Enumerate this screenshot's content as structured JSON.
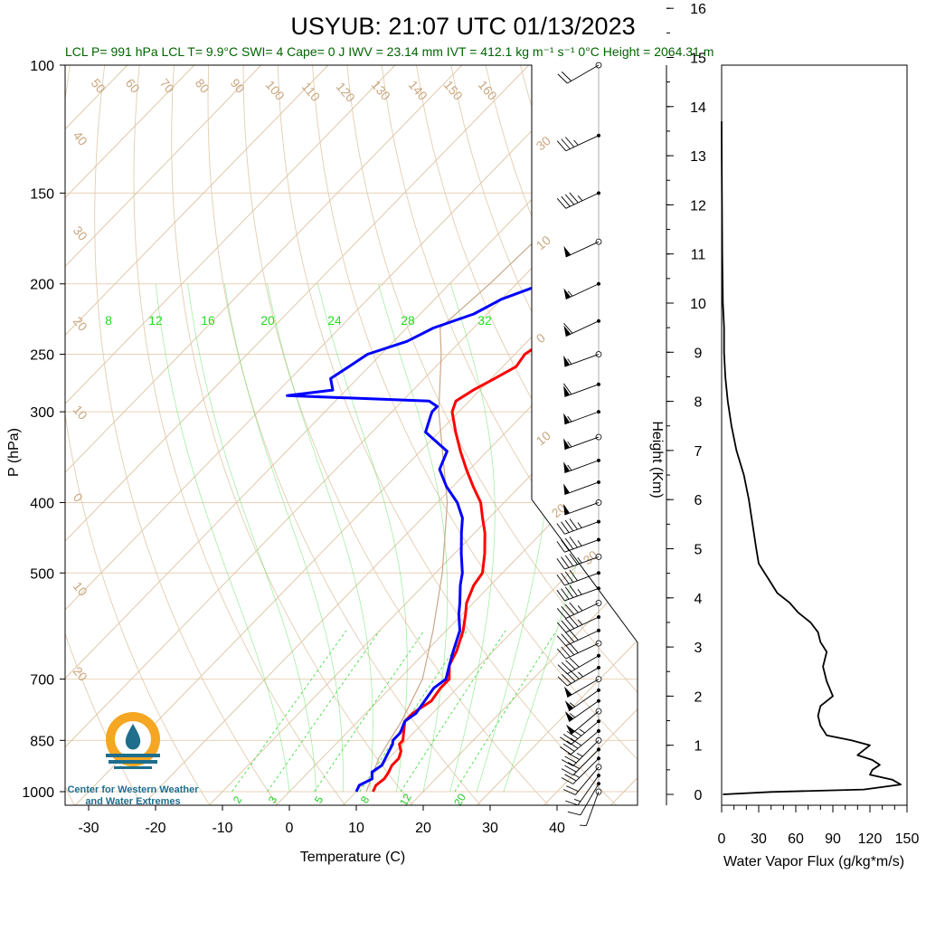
{
  "header": {
    "title": "USYUB: 21:07 UTC 01/13/2023",
    "indices": "LCL P= 991 hPa  LCL T= 9.9°C  SWI= 4  Cape= 0 J  IWV = 23.14 mm  IVT = 412.1 kg m⁻¹ s⁻¹  0°C Height = 2064.31 m"
  },
  "logo": {
    "line1": "Center for Western Weather",
    "line2": "and Water Extremes",
    "colors": {
      "sun": "#f5a623",
      "water": "#1f6e8c"
    }
  },
  "colors": {
    "temperature": "#ff0000",
    "dewpoint": "#0000ff",
    "isotherm": "#e0c8a8",
    "isobar": "#e8d2b8",
    "mixing_ratio": "#44dd44",
    "parcel": "#c8a88a",
    "wind": "#000000"
  },
  "chart_data": [
    {
      "type": "line",
      "name": "skew-t",
      "xlabel": "Temperature (C)",
      "ylabel": "P (hPa)",
      "xlim": [
        -34,
        53
      ],
      "ylim": [
        1000,
        100
      ],
      "log_y": true,
      "x_ticks": [
        -30,
        -20,
        -10,
        0,
        10,
        20,
        30,
        40
      ],
      "y_ticks": [
        100,
        150,
        200,
        250,
        300,
        400,
        500,
        700,
        850,
        1000
      ],
      "isotherm_labels": [
        "50",
        "60",
        "70",
        "80",
        "90",
        "100",
        "110",
        "120",
        "130",
        "140",
        "150",
        "160",
        "40",
        "30",
        "20",
        "10",
        "0",
        "10",
        "20",
        "30",
        "10",
        "0",
        "10",
        "20",
        "30"
      ],
      "mixing_ratio_labels_upper": [
        "8",
        "12",
        "16",
        "20",
        "24",
        "28",
        "32"
      ],
      "mixing_ratio_labels_lower": [
        "2",
        "3",
        "5",
        "8",
        "12",
        "20"
      ],
      "series": [
        {
          "name": "temperature",
          "p": [
            1000,
            980,
            960,
            940,
            920,
            900,
            880,
            860,
            850,
            830,
            800,
            780,
            750,
            720,
            700,
            670,
            640,
            600,
            570,
            550,
            520,
            500,
            470,
            440,
            420,
            400,
            380,
            360,
            340,
            320,
            300,
            290,
            280,
            270,
            260,
            250,
            240,
            230,
            220,
            210,
            200,
            190,
            180,
            170,
            160,
            150
          ],
          "t": [
            12.5,
            12.0,
            12.3,
            12.0,
            11.5,
            11.5,
            10.8,
            9.5,
            9.5,
            8.5,
            7.0,
            7.0,
            8.0,
            7.5,
            7.5,
            5.5,
            4.5,
            2.5,
            0.5,
            -1.0,
            -2.5,
            -3.0,
            -5.5,
            -8.5,
            -11.0,
            -13.5,
            -17.0,
            -20.5,
            -24.0,
            -27.5,
            -31.0,
            -32.0,
            -31.0,
            -29.5,
            -28.0,
            -28.5,
            -27.5,
            -27.5,
            -25.0,
            -23.5,
            -20.0,
            -19.0,
            -17.5,
            -17.0,
            -16.5,
            -16.0
          ]
        },
        {
          "name": "dewpoint",
          "p": [
            1000,
            980,
            960,
            940,
            920,
            900,
            880,
            860,
            850,
            830,
            800,
            780,
            750,
            720,
            700,
            670,
            640,
            600,
            570,
            550,
            520,
            500,
            470,
            440,
            420,
            400,
            380,
            360,
            340,
            320,
            305,
            300,
            295,
            290,
            285,
            280,
            270,
            260,
            250,
            240,
            230,
            220,
            210,
            200,
            190,
            180,
            170,
            160,
            150
          ],
          "td": [
            10.0,
            9.5,
            10.5,
            9.5,
            10.0,
            9.5,
            9.0,
            8.5,
            8.0,
            8.0,
            7.0,
            7.5,
            7.0,
            6.5,
            7.0,
            5.5,
            4.0,
            2.0,
            -0.5,
            -2.0,
            -4.5,
            -6.0,
            -9.0,
            -12.0,
            -14.0,
            -17.0,
            -21.0,
            -24.5,
            -26.0,
            -32.0,
            -33.5,
            -34.0,
            -34.0,
            -36.0,
            -58.0,
            -52.0,
            -54.0,
            -53.0,
            -52.0,
            -48.0,
            -46.0,
            -42.0,
            -40.0,
            -36.0,
            -34.0,
            -31.0,
            -30.0,
            -28.0,
            -25.0
          ]
        },
        {
          "name": "parcel",
          "p": [
            1000,
            900,
            850,
            800,
            700,
            600,
            500,
            400,
            300,
            250,
            230,
            200,
            150,
            105
          ],
          "t": [
            11.5,
            8.5,
            7.5,
            6.5,
            3.5,
            -2.0,
            -9.0,
            -18.5,
            -33.0,
            -41.0,
            -45.0,
            -44.0,
            -43.0,
            -40.0
          ]
        }
      ]
    },
    {
      "type": "line",
      "name": "water-vapor-flux",
      "xlabel": "Water Vapor Flux (g/kg*m/s)",
      "ylabel": "Height (Km)",
      "xlim": [
        0,
        150
      ],
      "ylim": [
        0,
        16.5
      ],
      "x_ticks": [
        0,
        30,
        60,
        90,
        120,
        150
      ],
      "y_ticks": [
        0,
        1,
        2,
        3,
        4,
        5,
        6,
        7,
        8,
        9,
        10,
        11,
        12,
        13,
        14,
        15,
        16
      ],
      "series": [
        {
          "name": "flux",
          "height_km": [
            0.0,
            0.05,
            0.1,
            0.2,
            0.3,
            0.4,
            0.5,
            0.6,
            0.7,
            0.8,
            0.9,
            1.0,
            1.1,
            1.2,
            1.4,
            1.6,
            1.8,
            2.0,
            2.3,
            2.6,
            2.9,
            3.1,
            3.3,
            3.5,
            3.7,
            3.9,
            4.1,
            4.3,
            4.5,
            4.7,
            5.0,
            5.5,
            6.0,
            6.5,
            7.0,
            7.5,
            8.0,
            8.5,
            9.0,
            9.3,
            9.5,
            10.0,
            11.0,
            12.0,
            13.0,
            13.7
          ],
          "flux": [
            1,
            40,
            115,
            145,
            138,
            120,
            122,
            128,
            122,
            110,
            115,
            120,
            105,
            85,
            80,
            78,
            80,
            90,
            85,
            82,
            85,
            80,
            78,
            72,
            62,
            55,
            45,
            40,
            35,
            30,
            28,
            25,
            22,
            18,
            12,
            8,
            5,
            3,
            2,
            2,
            2,
            1,
            0.5,
            0.3,
            0.1,
            0.0
          ]
        }
      ]
    },
    {
      "type": "scatter",
      "name": "wind-barbs",
      "x": [],
      "y": [],
      "pressure_levels_hPa": [
        1000,
        975,
        950,
        925,
        900,
        875,
        850,
        825,
        800,
        775,
        750,
        725,
        700,
        675,
        650,
        625,
        600,
        575,
        550,
        525,
        500,
        475,
        450,
        425,
        400,
        375,
        350,
        325,
        300,
        275,
        250,
        225,
        200,
        175,
        150,
        125,
        100
      ],
      "speed_kt": [
        5,
        10,
        15,
        20,
        25,
        30,
        35,
        40,
        45,
        50,
        55,
        55,
        50,
        45,
        40,
        40,
        40,
        45,
        45,
        45,
        40,
        45,
        45,
        45,
        50,
        50,
        55,
        55,
        55,
        60,
        55,
        60,
        55,
        50,
        45,
        35,
        20
      ],
      "direction_deg": [
        200,
        210,
        215,
        220,
        225,
        225,
        225,
        230,
        230,
        230,
        235,
        235,
        240,
        240,
        240,
        245,
        245,
        245,
        245,
        250,
        250,
        250,
        250,
        250,
        250,
        250,
        250,
        250,
        250,
        250,
        250,
        245,
        245,
        245,
        245,
        245,
        240
      ]
    }
  ]
}
